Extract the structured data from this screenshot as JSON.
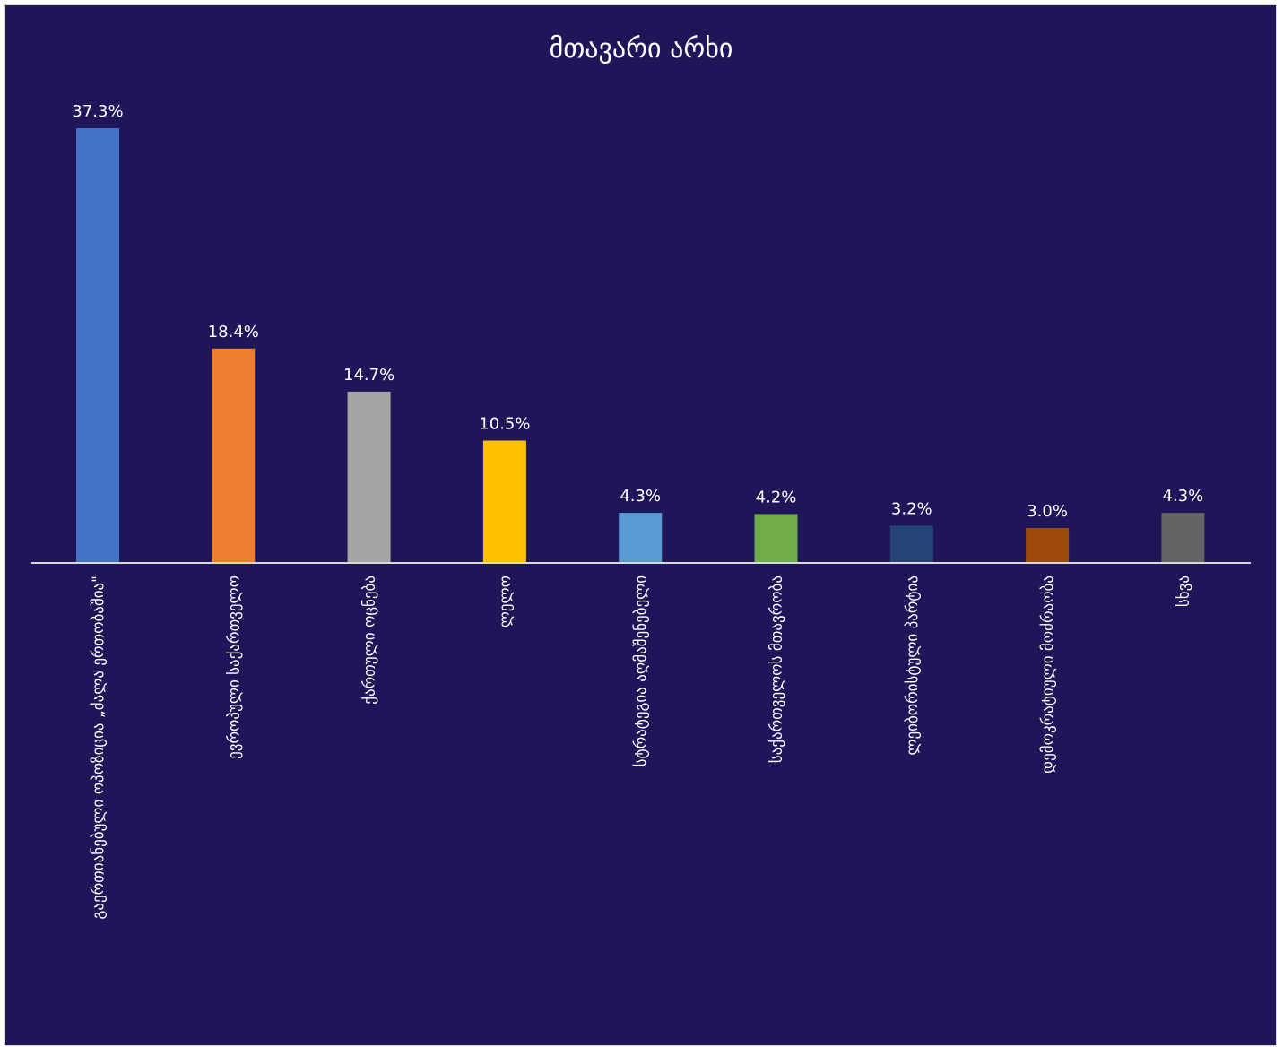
{
  "chart_data": {
    "type": "bar",
    "title": "მთავარი არხი",
    "xlabel": "",
    "ylabel": "",
    "ylim": [
      0,
      40
    ],
    "grid": false,
    "legend": "none",
    "background_color": "#1e1659",
    "axis_color": "#d9d9d9",
    "text_color": "#ffffff",
    "categories": [
      "გაერთიანებული ოპოზიცია „ძალა ერთობაშია\"",
      "ევროპული საქართველო",
      "ქართული ოცნება",
      "ლელო",
      "სტრატეგია აღმაშენებელი",
      "საქართველოს მთავრობა",
      "ლეიბორისტული პარტია",
      "დემოკრატიული მოძრაობა",
      "სხვა"
    ],
    "values": [
      37.3,
      18.4,
      14.7,
      10.5,
      4.3,
      4.2,
      3.2,
      3.0,
      4.3
    ],
    "value_labels": [
      "37.3%",
      "18.4%",
      "14.7%",
      "10.5%",
      "4.3%",
      "4.2%",
      "3.2%",
      "3.0%",
      "4.3%"
    ],
    "colors": [
      "#4472c4",
      "#ed7d31",
      "#a5a5a5",
      "#ffc000",
      "#5b9bd5",
      "#70ad47",
      "#264478",
      "#9e480e",
      "#636363"
    ]
  }
}
